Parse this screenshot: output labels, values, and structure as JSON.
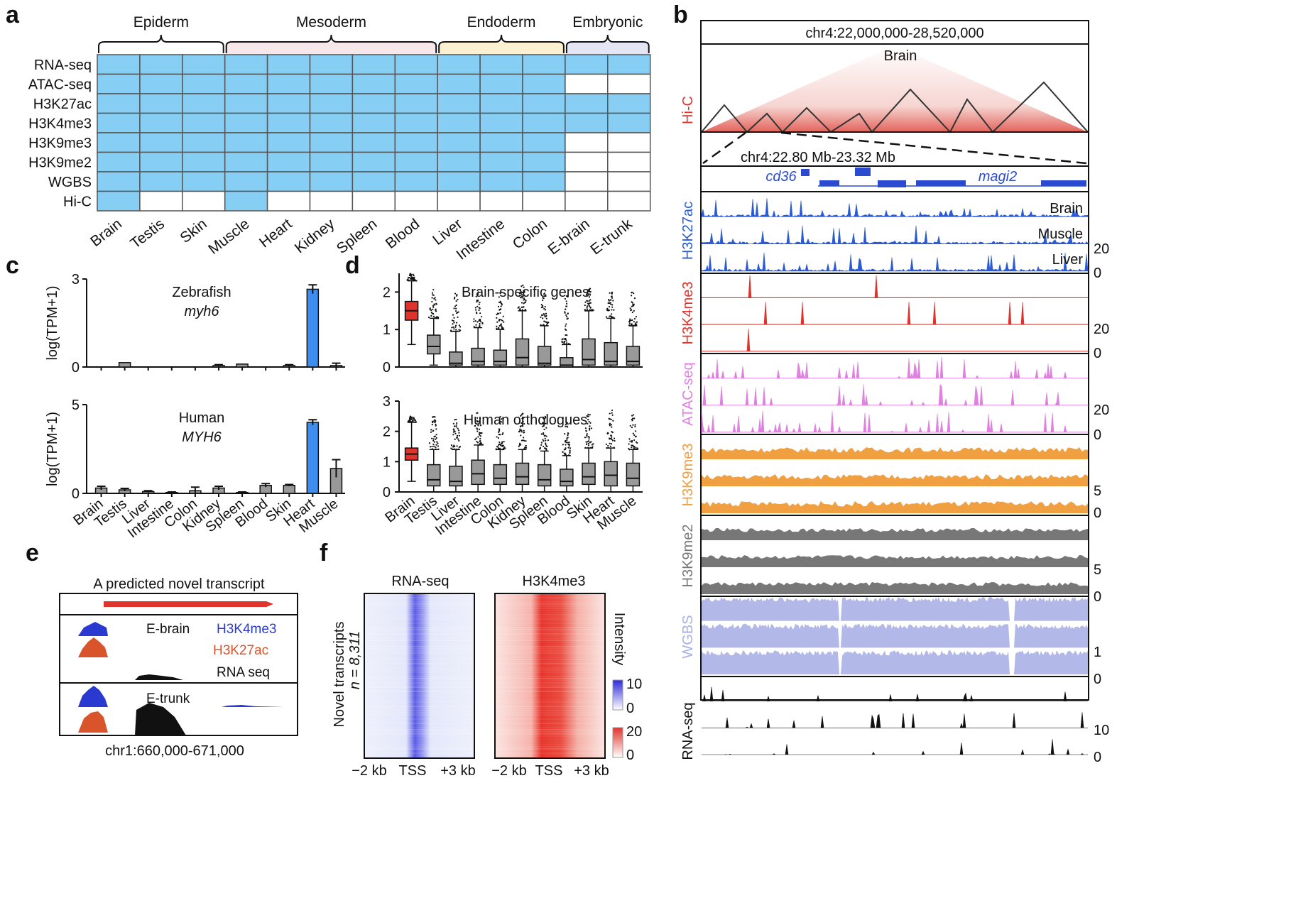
{
  "panel_letters": [
    "a",
    "b",
    "c",
    "d",
    "e",
    "f"
  ],
  "panel_a": {
    "groups": [
      "Epiderm",
      "Mesoderm",
      "Endoderm",
      "Embryonic"
    ],
    "group_colors": [
      "#ffffff",
      "#f6e7ea",
      "#fbf0cf",
      "#e4e6f3"
    ],
    "assays": [
      "RNA-seq",
      "ATAC-seq",
      "H3K27ac",
      "H3K4me3",
      "H3K9me3",
      "H3K9me2",
      "WGBS",
      "Hi-C"
    ],
    "tissues": [
      "Brain",
      "Testis",
      "Skin",
      "Muscle",
      "Heart",
      "Kidney",
      "Spleen",
      "Blood",
      "Liver",
      "Intestine",
      "Colon",
      "E-brain",
      "E-trunk"
    ],
    "filled_color": "#87cef4",
    "matrix": [
      [
        1,
        1,
        1,
        1,
        1,
        1,
        1,
        1,
        1,
        1,
        1,
        1,
        1
      ],
      [
        1,
        1,
        1,
        1,
        1,
        1,
        1,
        1,
        1,
        1,
        1,
        0,
        0
      ],
      [
        1,
        1,
        1,
        1,
        1,
        1,
        1,
        1,
        1,
        1,
        1,
        1,
        1
      ],
      [
        1,
        1,
        1,
        1,
        1,
        1,
        1,
        1,
        1,
        1,
        1,
        1,
        1
      ],
      [
        1,
        1,
        1,
        1,
        1,
        1,
        1,
        1,
        1,
        1,
        1,
        0,
        0
      ],
      [
        1,
        1,
        1,
        1,
        1,
        1,
        1,
        1,
        1,
        1,
        1,
        0,
        0
      ],
      [
        1,
        1,
        1,
        1,
        1,
        1,
        1,
        1,
        1,
        1,
        1,
        0,
        0
      ],
      [
        1,
        0,
        0,
        1,
        0,
        0,
        0,
        0,
        0,
        0,
        0,
        0,
        0
      ]
    ]
  },
  "panel_b": {
    "region": "chr4:22,000,000-28,520,000",
    "hic_label": "Hi-C",
    "hic_title": "Brain",
    "zoom_region": "chr4:22.80 Mb-23.32 Mb",
    "genes": [
      "cd36",
      "magi2"
    ],
    "tracks": [
      {
        "name": "H3K27ac",
        "color": "#2a5bd7",
        "rows": [
          "Brain",
          "Muscle",
          "Liver"
        ],
        "scale": [
          "20",
          "0"
        ]
      },
      {
        "name": "H3K4me3",
        "color": "#e0332b",
        "rows": [],
        "scale": [
          "20",
          "0"
        ]
      },
      {
        "name": "ATAC-seq",
        "color": "#e080e0",
        "rows": [],
        "scale": [
          "20",
          "0"
        ]
      },
      {
        "name": "H3K9me3",
        "color": "#f0a040",
        "rows": [],
        "scale": [
          "5",
          "0"
        ]
      },
      {
        "name": "H3K9me2",
        "color": "#777777",
        "rows": [],
        "scale": [
          "5",
          "0"
        ]
      },
      {
        "name": "WGBS",
        "color": "#aab0e6",
        "rows": [],
        "scale": [
          "1",
          "0"
        ]
      },
      {
        "name": "RNA-seq",
        "color": "#111111",
        "rows": [],
        "scale": [
          "10",
          "0"
        ]
      }
    ]
  },
  "panel_c": {
    "ylabel": "log(TPM+1)",
    "highlight_color": "#3d8ef0",
    "bar_color": "#999999",
    "zebrafish": {
      "title": "Zebrafish",
      "gene": "myh6",
      "yticks": [
        "0",
        "3"
      ],
      "ylim": [
        0,
        3
      ]
    },
    "human": {
      "title": "Human",
      "gene": "MYH6",
      "yticks": [
        "0",
        "5"
      ],
      "ylim": [
        0,
        5
      ]
    },
    "categories": [
      "Brain",
      "Testis",
      "Liver",
      "Intestine",
      "Colon",
      "Kidney",
      "Spleen",
      "Blood",
      "Skin",
      "Heart",
      "Muscle"
    ]
  },
  "panel_d": {
    "top_title": "Brain-specific genes",
    "top_yticks": [
      "0",
      "1",
      "2"
    ],
    "bottom_title": "Human orthologues",
    "bottom_yticks": [
      "0",
      "1",
      "2",
      "3"
    ],
    "brain_color": "#e0332b",
    "box_color": "#999999",
    "categories": [
      "Brain",
      "Testis",
      "Liver",
      "Intestine",
      "Colon",
      "Kidney",
      "Spleen",
      "Blood",
      "Skin",
      "Heart",
      "Muscle"
    ]
  },
  "panel_e": {
    "title": "A predicted novel transcript",
    "labels": [
      "E-brain",
      "E-trunk"
    ],
    "legend": [
      "H3K4me3",
      "H3K27ac",
      "RNA seq"
    ],
    "legend_colors": [
      "#2a3ad0",
      "#d9542b",
      "#111111"
    ],
    "region": "chr1:660,000-671,000"
  },
  "panel_f": {
    "ylabel_main": "Novel transcripts",
    "ylabel_n": "n = 8,311",
    "heatmap_titles": [
      "RNA-seq",
      "H3K4me3"
    ],
    "xticks": [
      "−2 kb",
      "TSS",
      "+3 kb"
    ],
    "intensity_label": "Intensity",
    "rna_scale": [
      "10",
      "0"
    ],
    "k4_scale": [
      "20",
      "0"
    ]
  },
  "chart_data": [
    {
      "type": "bar",
      "title": "Zebrafish myh6",
      "ylabel": "log(TPM+1)",
      "categories": [
        "Brain",
        "Testis",
        "Liver",
        "Intestine",
        "Colon",
        "Kidney",
        "Spleen",
        "Blood",
        "Skin",
        "Heart",
        "Muscle"
      ],
      "values": [
        0,
        0.15,
        0,
        0,
        0,
        0.05,
        0.1,
        0,
        0.05,
        2.65,
        0.05
      ],
      "errors": [
        0,
        0,
        0,
        0,
        0,
        0.03,
        0,
        0,
        0.03,
        0.15,
        0.08
      ],
      "ylim": [
        0,
        3
      ]
    },
    {
      "type": "bar",
      "title": "Human MYH6",
      "ylabel": "log(TPM+1)",
      "categories": [
        "Brain",
        "Testis",
        "Liver",
        "Intestine",
        "Colon",
        "Kidney",
        "Spleen",
        "Blood",
        "Skin",
        "Heart",
        "Muscle"
      ],
      "values": [
        0.3,
        0.2,
        0.1,
        0.05,
        0.15,
        0.3,
        0.05,
        0.45,
        0.45,
        4.0,
        1.4
      ],
      "errors": [
        0.1,
        0.08,
        0.05,
        0.03,
        0.2,
        0.1,
        0.03,
        0.1,
        0.05,
        0.15,
        0.5
      ],
      "ylim": [
        0,
        5
      ]
    },
    {
      "type": "box",
      "title": "Brain-specific genes",
      "categories": [
        "Brain",
        "Testis",
        "Liver",
        "Intestine",
        "Colon",
        "Kidney",
        "Spleen",
        "Blood",
        "Skin",
        "Heart",
        "Muscle"
      ],
      "q1": [
        1.25,
        0.35,
        0.05,
        0.05,
        0.05,
        0.05,
        0.05,
        0.0,
        0.05,
        0.05,
        0.05
      ],
      "median": [
        1.5,
        0.55,
        0.1,
        0.15,
        0.15,
        0.25,
        0.1,
        0.05,
        0.2,
        0.15,
        0.15
      ],
      "q3": [
        1.75,
        0.85,
        0.4,
        0.5,
        0.45,
        0.75,
        0.55,
        0.25,
        0.75,
        0.65,
        0.55
      ],
      "whisker_low": [
        0.6,
        0.05,
        0,
        0,
        0,
        0,
        0,
        0,
        0,
        0,
        0
      ],
      "whisker_high": [
        2.3,
        1.3,
        0.95,
        1.05,
        1.0,
        1.5,
        1.1,
        0.6,
        1.5,
        1.3,
        1.1
      ],
      "outlier_max": [
        2.5,
        2.1,
        2.0,
        2.0,
        2.0,
        2.2,
        2.0,
        1.9,
        2.1,
        2.0,
        2.0
      ],
      "ylim": [
        0,
        2.5
      ]
    },
    {
      "type": "box",
      "title": "Human orthologues",
      "categories": [
        "Brain",
        "Testis",
        "Liver",
        "Intestine",
        "Colon",
        "Kidney",
        "Spleen",
        "Blood",
        "Skin",
        "Heart",
        "Muscle"
      ],
      "q1": [
        1.05,
        0.2,
        0.2,
        0.25,
        0.25,
        0.25,
        0.2,
        0.2,
        0.25,
        0.2,
        0.2
      ],
      "median": [
        1.25,
        0.4,
        0.35,
        0.6,
        0.45,
        0.5,
        0.4,
        0.35,
        0.5,
        0.55,
        0.45
      ],
      "q3": [
        1.45,
        0.9,
        0.85,
        1.05,
        0.9,
        0.95,
        0.9,
        0.75,
        0.95,
        1.0,
        0.95
      ],
      "whisker_low": [
        0.35,
        0,
        0,
        0,
        0,
        0,
        0,
        0,
        0,
        0,
        0
      ],
      "whisker_high": [
        2.3,
        1.4,
        1.4,
        1.55,
        1.4,
        1.4,
        1.35,
        1.2,
        1.45,
        1.45,
        1.4
      ],
      "outlier_max": [
        2.5,
        2.5,
        2.5,
        2.8,
        2.5,
        2.6,
        2.5,
        2.3,
        2.6,
        2.7,
        2.6
      ],
      "ylim": [
        0,
        3
      ]
    }
  ]
}
